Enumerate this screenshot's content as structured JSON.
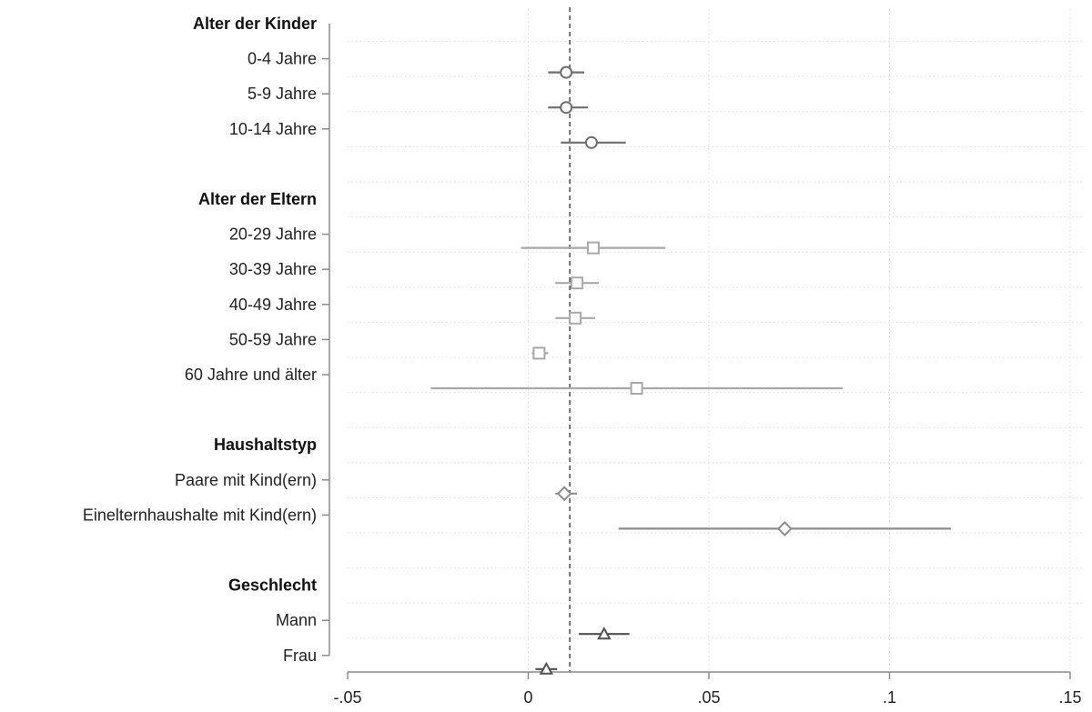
{
  "chart_data": {
    "type": "scatter",
    "title": "",
    "xlabel": "",
    "ylabel": "",
    "xlim": [
      -0.05,
      0.15
    ],
    "x_ticks": [
      {
        "value": -0.05,
        "label": "-.05"
      },
      {
        "value": 0,
        "label": "0"
      },
      {
        "value": 0.05,
        "label": ".05"
      },
      {
        "value": 0.1,
        "label": ".1"
      },
      {
        "value": 0.15,
        "label": ".15"
      }
    ],
    "reference_line": 0.0115,
    "grid": true,
    "legend": "none",
    "groups": [
      {
        "label": "Alter der Kinder",
        "marker": "circle",
        "color": "#6e6e6e",
        "items": [
          {
            "label": "0-4 Jahre",
            "est": 0.0105,
            "lo": 0.0055,
            "hi": 0.0155
          },
          {
            "label": "5-9 Jahre",
            "est": 0.0105,
            "lo": 0.0055,
            "hi": 0.0165
          },
          {
            "label": "10-14 Jahre",
            "est": 0.0175,
            "lo": 0.009,
            "hi": 0.027
          }
        ]
      },
      {
        "label": "Alter der Eltern",
        "marker": "square",
        "color": "#a8a8a8",
        "items": [
          {
            "label": "20-29 Jahre",
            "est": 0.018,
            "lo": -0.002,
            "hi": 0.038
          },
          {
            "label": "30-39 Jahre",
            "est": 0.0135,
            "lo": 0.0075,
            "hi": 0.0195
          },
          {
            "label": "40-49 Jahre",
            "est": 0.013,
            "lo": 0.0075,
            "hi": 0.0185
          },
          {
            "label": "50-59 Jahre",
            "est": 0.003,
            "lo": 0.001,
            "hi": 0.0055
          },
          {
            "label": "60 Jahre und älter",
            "est": 0.03,
            "lo": -0.027,
            "hi": 0.087
          }
        ]
      },
      {
        "label": "Haushaltstyp",
        "marker": "diamond",
        "color": "#8c8c8c",
        "items": [
          {
            "label": "Paare mit Kind(ern)",
            "est": 0.01,
            "lo": 0.0075,
            "hi": 0.0135
          },
          {
            "label": "Einelternhaushalte mit Kind(ern)",
            "est": 0.071,
            "lo": 0.025,
            "hi": 0.117
          }
        ]
      },
      {
        "label": "Geschlecht",
        "marker": "triangle",
        "color": "#505050",
        "items": [
          {
            "label": "Mann",
            "est": 0.021,
            "lo": 0.014,
            "hi": 0.028
          },
          {
            "label": "Frau",
            "est": 0.005,
            "lo": 0.002,
            "hi": 0.008
          }
        ]
      }
    ]
  }
}
